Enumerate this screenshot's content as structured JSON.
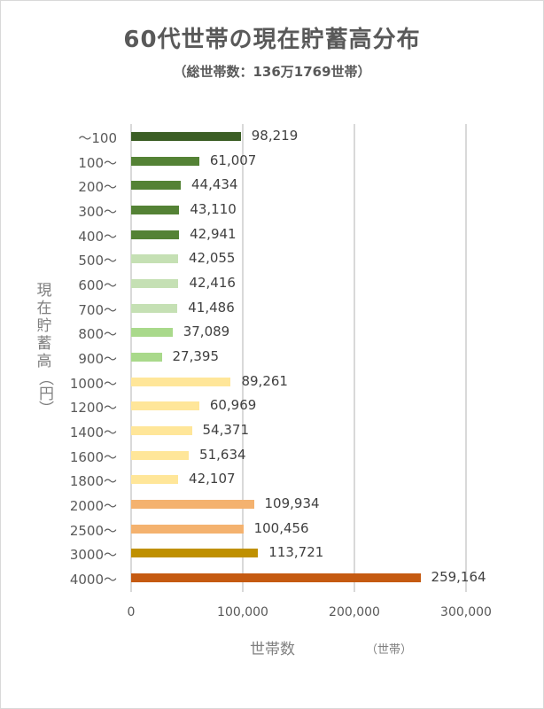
{
  "chart_data": {
    "type": "bar",
    "orientation": "horizontal",
    "title": "60代世帯の現在貯蓄高分布",
    "subtitle": "（総世帯数：136万1769世帯）",
    "xlabel": "世帯数",
    "xunit": "（世帯）",
    "ylabel": "現在貯蓄高（円）",
    "xlim": [
      0,
      300000
    ],
    "xticks": [
      "0",
      "100,000",
      "200,000",
      "300,000"
    ],
    "grid": true,
    "legend": "none",
    "categories": [
      "～100",
      "100～",
      "200～",
      "300～",
      "400～",
      "500～",
      "600～",
      "700～",
      "800～",
      "900～",
      "1000～",
      "1200～",
      "1400～",
      "1600～",
      "1800～",
      "2000～",
      "2500～",
      "3000～",
      "4000～"
    ],
    "values": [
      98219,
      61007,
      44434,
      43110,
      42941,
      42055,
      42416,
      41486,
      37089,
      27395,
      89261,
      60969,
      54371,
      51634,
      42107,
      109934,
      100456,
      113721,
      259164
    ],
    "value_labels": [
      "98,219",
      "61,007",
      "44,434",
      "43,110",
      "42,941",
      "42,055",
      "42,416",
      "41,486",
      "37,089",
      "27,395",
      "89,261",
      "60,969",
      "54,371",
      "51,634",
      "42,107",
      "109,934",
      "100,456",
      "113,721",
      "259,164"
    ],
    "colors": [
      "#3b5e25",
      "#548235",
      "#548235",
      "#548235",
      "#548235",
      "#c5e0b4",
      "#c5e0b4",
      "#c5e0b4",
      "#a9d98b",
      "#a9d98b",
      "#ffe699",
      "#ffe699",
      "#ffe699",
      "#ffe699",
      "#ffe699",
      "#f4b26f",
      "#f4b26f",
      "#bf9000",
      "#c55a11"
    ]
  },
  "labels": {
    "ylabel_chars": [
      "現",
      "在",
      "貯",
      "蓄",
      "高"
    ],
    "ylabel_unit": "（円）"
  }
}
